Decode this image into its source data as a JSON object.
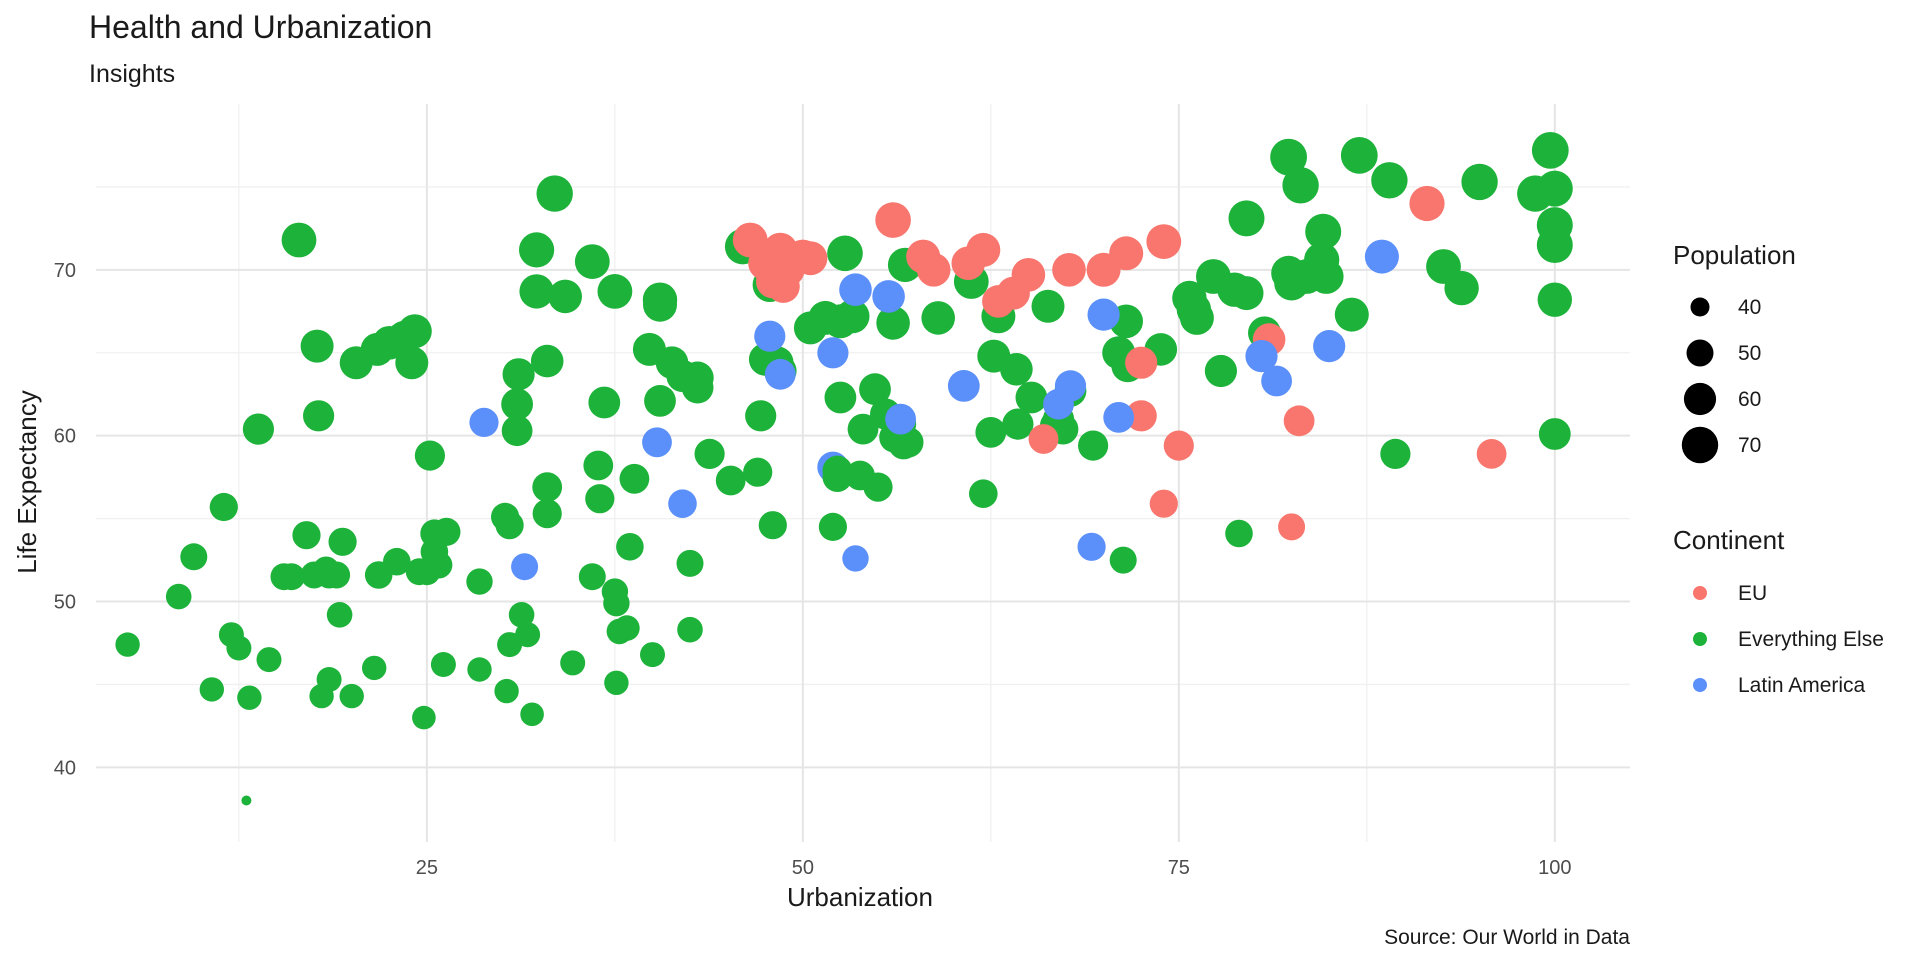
{
  "chart_data": {
    "type": "scatter",
    "title": "Health and Urbanization",
    "subtitle": "Insights",
    "xlabel": "Urbanization",
    "ylabel": "Life Expectancy",
    "caption": "Source: Our World in Data",
    "xlim": [
      3,
      105
    ],
    "ylim": [
      35.5,
      80
    ],
    "x_ticks": [
      25,
      50,
      75,
      100
    ],
    "y_ticks": [
      40,
      50,
      60,
      70
    ],
    "grid": true,
    "size_range": [
      36,
      77
    ],
    "size_legend": {
      "title": "Population",
      "entries": [
        {
          "label": "40",
          "value": 40
        },
        {
          "label": "50",
          "value": 50
        },
        {
          "label": "60",
          "value": 60
        },
        {
          "label": "70",
          "value": 70
        }
      ]
    },
    "color_legend": {
      "title": "Continent",
      "entries": [
        {
          "label": "EU",
          "color": "#F8766D"
        },
        {
          "label": "Everything Else",
          "color": "#1DB33A"
        },
        {
          "label": "Latin America",
          "color": "#5B8FF9"
        }
      ]
    },
    "series": [
      {
        "name": "Everything Else",
        "color": "#1DB33A",
        "points": [
          [
            5.1,
            47.4
          ],
          [
            8.5,
            50.3
          ],
          [
            9.5,
            52.7
          ],
          [
            10.7,
            44.7
          ],
          [
            11.5,
            55.7
          ],
          [
            12,
            48
          ],
          [
            12.5,
            47.2
          ],
          [
            13,
            38
          ],
          [
            13.2,
            44.2
          ],
          [
            13.8,
            60.4
          ],
          [
            14.5,
            46.5
          ],
          [
            15.5,
            51.5
          ],
          [
            16,
            51.5
          ],
          [
            16.5,
            71.8
          ],
          [
            17,
            54
          ],
          [
            17.5,
            51.6
          ],
          [
            17.7,
            65.4
          ],
          [
            17.8,
            61.2
          ],
          [
            18,
            44.3
          ],
          [
            18.3,
            51.9
          ],
          [
            18.5,
            45.3
          ],
          [
            18.5,
            51.6
          ],
          [
            19,
            51.6
          ],
          [
            19.2,
            49.2
          ],
          [
            19.4,
            53.6
          ],
          [
            20,
            44.3
          ],
          [
            20.3,
            64.4
          ],
          [
            21.5,
            46
          ],
          [
            21.7,
            65.2
          ],
          [
            21.8,
            51.6
          ],
          [
            22.5,
            65.6
          ],
          [
            23,
            52.4
          ],
          [
            23.5,
            65.9
          ],
          [
            24,
            64.4
          ],
          [
            24.2,
            66.3
          ],
          [
            24.5,
            51.8
          ],
          [
            24.8,
            43
          ],
          [
            25,
            51.8
          ],
          [
            25.2,
            58.8
          ],
          [
            25.5,
            54.1
          ],
          [
            25.5,
            53
          ],
          [
            25.8,
            52.2
          ],
          [
            26.1,
            46.2
          ],
          [
            26.3,
            54.2
          ],
          [
            28.5,
            51.2
          ],
          [
            28.5,
            45.9
          ],
          [
            30.2,
            55.1
          ],
          [
            30.3,
            44.6
          ],
          [
            30.5,
            47.4
          ],
          [
            30.5,
            54.6
          ],
          [
            31,
            60.3
          ],
          [
            31,
            61.9
          ],
          [
            31.1,
            63.7
          ],
          [
            31.3,
            49.2
          ],
          [
            31.7,
            48
          ],
          [
            32,
            43.2
          ],
          [
            32.3,
            71.2
          ],
          [
            32.3,
            68.7
          ],
          [
            33,
            64.5
          ],
          [
            33,
            56.9
          ],
          [
            33,
            55.3
          ],
          [
            33.5,
            74.6
          ],
          [
            34.2,
            68.4
          ],
          [
            34.7,
            46.3
          ],
          [
            36,
            51.5
          ],
          [
            36,
            70.5
          ],
          [
            36.4,
            58.2
          ],
          [
            36.5,
            56.2
          ],
          [
            36.8,
            62
          ],
          [
            37.5,
            68.7
          ],
          [
            37.5,
            50.6
          ],
          [
            37.6,
            45.1
          ],
          [
            37.6,
            49.9
          ],
          [
            37.8,
            48.2
          ],
          [
            38.3,
            48.4
          ],
          [
            38.5,
            53.3
          ],
          [
            38.8,
            57.4
          ],
          [
            39.8,
            65.2
          ],
          [
            40,
            46.8
          ],
          [
            40.5,
            62.1
          ],
          [
            40.5,
            68.2
          ],
          [
            40.5,
            67.9
          ],
          [
            41.3,
            64.4
          ],
          [
            42,
            63.6
          ],
          [
            42.5,
            52.3
          ],
          [
            42.5,
            48.3
          ],
          [
            43,
            63.5
          ],
          [
            43,
            62.9
          ],
          [
            43.8,
            58.9
          ],
          [
            45.2,
            57.3
          ],
          [
            46,
            71.4
          ],
          [
            47,
            57.8
          ],
          [
            47.2,
            61.2
          ],
          [
            47.5,
            64.6
          ],
          [
            47.8,
            69.1
          ],
          [
            48,
            54.6
          ],
          [
            48.3,
            64.4
          ],
          [
            48.5,
            63.9
          ],
          [
            50.5,
            66.5
          ],
          [
            51.5,
            67.1
          ],
          [
            52,
            54.5
          ],
          [
            52.3,
            57.5
          ],
          [
            52.3,
            57.9
          ],
          [
            52.5,
            66.9
          ],
          [
            52.5,
            62.3
          ],
          [
            52.8,
            71
          ],
          [
            53.3,
            67.2
          ],
          [
            53.8,
            57.6
          ],
          [
            54,
            60.4
          ],
          [
            54.8,
            62.8
          ],
          [
            55,
            56.9
          ],
          [
            55.5,
            61.3
          ],
          [
            56,
            66.8
          ],
          [
            56.1,
            59.9
          ],
          [
            56.5,
            60.7
          ],
          [
            56.7,
            59.5
          ],
          [
            56.8,
            70.3
          ],
          [
            57,
            59.6
          ],
          [
            59,
            67.1
          ],
          [
            61.2,
            69.3
          ],
          [
            62,
            56.5
          ],
          [
            62.5,
            60.2
          ],
          [
            62.7,
            64.8
          ],
          [
            63,
            67.2
          ],
          [
            64.2,
            64
          ],
          [
            64.3,
            60.7
          ],
          [
            65.2,
            62.3
          ],
          [
            66.3,
            67.8
          ],
          [
            66.8,
            60.6
          ],
          [
            67,
            61
          ],
          [
            67.3,
            60.4
          ],
          [
            67.8,
            62.7
          ],
          [
            69.3,
            59.4
          ],
          [
            71,
            65
          ],
          [
            71.3,
            52.5
          ],
          [
            71.5,
            66.9
          ],
          [
            71.6,
            64.4
          ],
          [
            71.6,
            64.2
          ],
          [
            73.8,
            65.2
          ],
          [
            75.7,
            68.3
          ],
          [
            76,
            67.6
          ],
          [
            76.2,
            67.1
          ],
          [
            77.3,
            69.6
          ],
          [
            77.8,
            63.9
          ],
          [
            78.7,
            68.8
          ],
          [
            79,
            54.1
          ],
          [
            79.5,
            68.6
          ],
          [
            79.5,
            73.1
          ],
          [
            80.7,
            66.2
          ],
          [
            82.3,
            69.8
          ],
          [
            82.3,
            76.8
          ],
          [
            82.5,
            69.2
          ],
          [
            83.1,
            75.1
          ],
          [
            83.5,
            69.6
          ],
          [
            84.5,
            70.6
          ],
          [
            84.6,
            72.3
          ],
          [
            84.8,
            69.6
          ],
          [
            86.5,
            67.3
          ],
          [
            87,
            76.9
          ],
          [
            89,
            75.4
          ],
          [
            89.4,
            58.9
          ],
          [
            92.6,
            70.2
          ],
          [
            93.8,
            68.9
          ],
          [
            95,
            75.3
          ],
          [
            98.7,
            74.6
          ],
          [
            99.7,
            77.2
          ],
          [
            100,
            72.7
          ],
          [
            100,
            74.9
          ],
          [
            100,
            71.5
          ],
          [
            100,
            68.2
          ],
          [
            100,
            60.1
          ]
        ],
        "sizes": [
          46,
          48,
          50,
          46,
          52,
          47,
          47,
          36,
          46,
          58,
          47,
          50,
          50,
          66,
          52,
          50,
          62,
          58,
          46,
          50,
          47,
          50,
          50,
          48,
          52,
          46,
          62,
          46,
          62,
          51,
          63,
          51,
          64,
          62,
          64,
          50,
          45,
          50,
          56,
          52,
          51,
          50,
          47,
          52,
          49,
          46,
          52,
          46,
          47,
          52,
          57,
          59,
          60,
          48,
          47,
          45,
          67,
          65,
          61,
          55,
          54,
          70,
          63,
          47,
          50,
          66,
          55,
          54,
          59,
          66,
          49,
          46,
          49,
          48,
          48,
          51,
          55,
          62,
          47,
          59,
          65,
          64,
          61,
          60,
          50,
          48,
          60,
          59,
          56,
          55,
          68,
          54,
          58,
          61,
          65,
          52,
          61,
          61,
          62,
          64,
          52,
          55,
          55,
          64,
          59,
          68,
          64,
          55,
          57,
          59,
          54,
          58,
          63,
          57,
          58,
          57,
          65,
          57,
          63,
          66,
          53,
          57,
          62,
          64,
          61,
          58,
          59,
          62,
          58,
          58,
          57,
          59,
          56,
          62,
          50,
          63,
          61,
          61,
          61,
          65,
          65,
          64,
          66,
          60,
          65,
          51,
          64,
          69,
          62,
          66,
          71,
          66,
          70,
          66,
          67,
          69,
          66,
          64,
          71,
          70,
          56,
          66,
          65,
          70,
          70,
          71,
          69,
          69,
          69,
          65,
          59
        ]
      },
      {
        "name": "EU",
        "color": "#F8766D",
        "points": [
          [
            46.5,
            71.8
          ],
          [
            47.5,
            70.4
          ],
          [
            48,
            69.3
          ],
          [
            48.5,
            71.2
          ],
          [
            48.7,
            69
          ],
          [
            49,
            70
          ],
          [
            50,
            70.8
          ],
          [
            50.5,
            70.7
          ],
          [
            56,
            73
          ],
          [
            58,
            70.8
          ],
          [
            58.7,
            70
          ],
          [
            61,
            70.4
          ],
          [
            62,
            71.2
          ],
          [
            63,
            68.1
          ],
          [
            64,
            68.6
          ],
          [
            65,
            69.7
          ],
          [
            66,
            59.8
          ],
          [
            67.7,
            70
          ],
          [
            70,
            70
          ],
          [
            71.5,
            71
          ],
          [
            72.5,
            64.4
          ],
          [
            72.5,
            61.2
          ],
          [
            74,
            71.7
          ],
          [
            74,
            55.9
          ],
          [
            75,
            59.4
          ],
          [
            81,
            65.8
          ],
          [
            82.5,
            54.5
          ],
          [
            83,
            60.9
          ],
          [
            91.5,
            74
          ],
          [
            95.8,
            58.9
          ]
        ],
        "sizes": [
          66,
          64,
          63,
          65,
          62,
          63,
          64,
          64,
          68,
          64,
          63,
          63,
          64,
          61,
          62,
          63,
          55,
          63,
          64,
          64,
          60,
          58,
          66,
          52,
          56,
          61,
          50,
          57,
          67,
          55
        ]
      },
      {
        "name": "Latin America",
        "color": "#5B8FF9",
        "points": [
          [
            28.8,
            60.8
          ],
          [
            31.5,
            52.1
          ],
          [
            40.3,
            59.6
          ],
          [
            42,
            55.9
          ],
          [
            47.8,
            66
          ],
          [
            48.5,
            63.7
          ],
          [
            52,
            65
          ],
          [
            52,
            58.1
          ],
          [
            53.5,
            68.8
          ],
          [
            53.5,
            52.6
          ],
          [
            55.7,
            68.4
          ],
          [
            56.5,
            61
          ],
          [
            60.7,
            63
          ],
          [
            67,
            61.9
          ],
          [
            67.8,
            63
          ],
          [
            69.2,
            53.3
          ],
          [
            70,
            67.3
          ],
          [
            71,
            61.1
          ],
          [
            80.5,
            64.8
          ],
          [
            81.5,
            63.3
          ],
          [
            85,
            65.4
          ],
          [
            88.5,
            70.8
          ]
        ],
        "sizes": [
          54,
          50,
          55,
          53,
          58,
          57,
          58,
          58,
          61,
          49,
          61,
          57,
          59,
          57,
          58,
          52,
          60,
          57,
          60,
          57,
          60,
          64
        ]
      }
    ]
  }
}
